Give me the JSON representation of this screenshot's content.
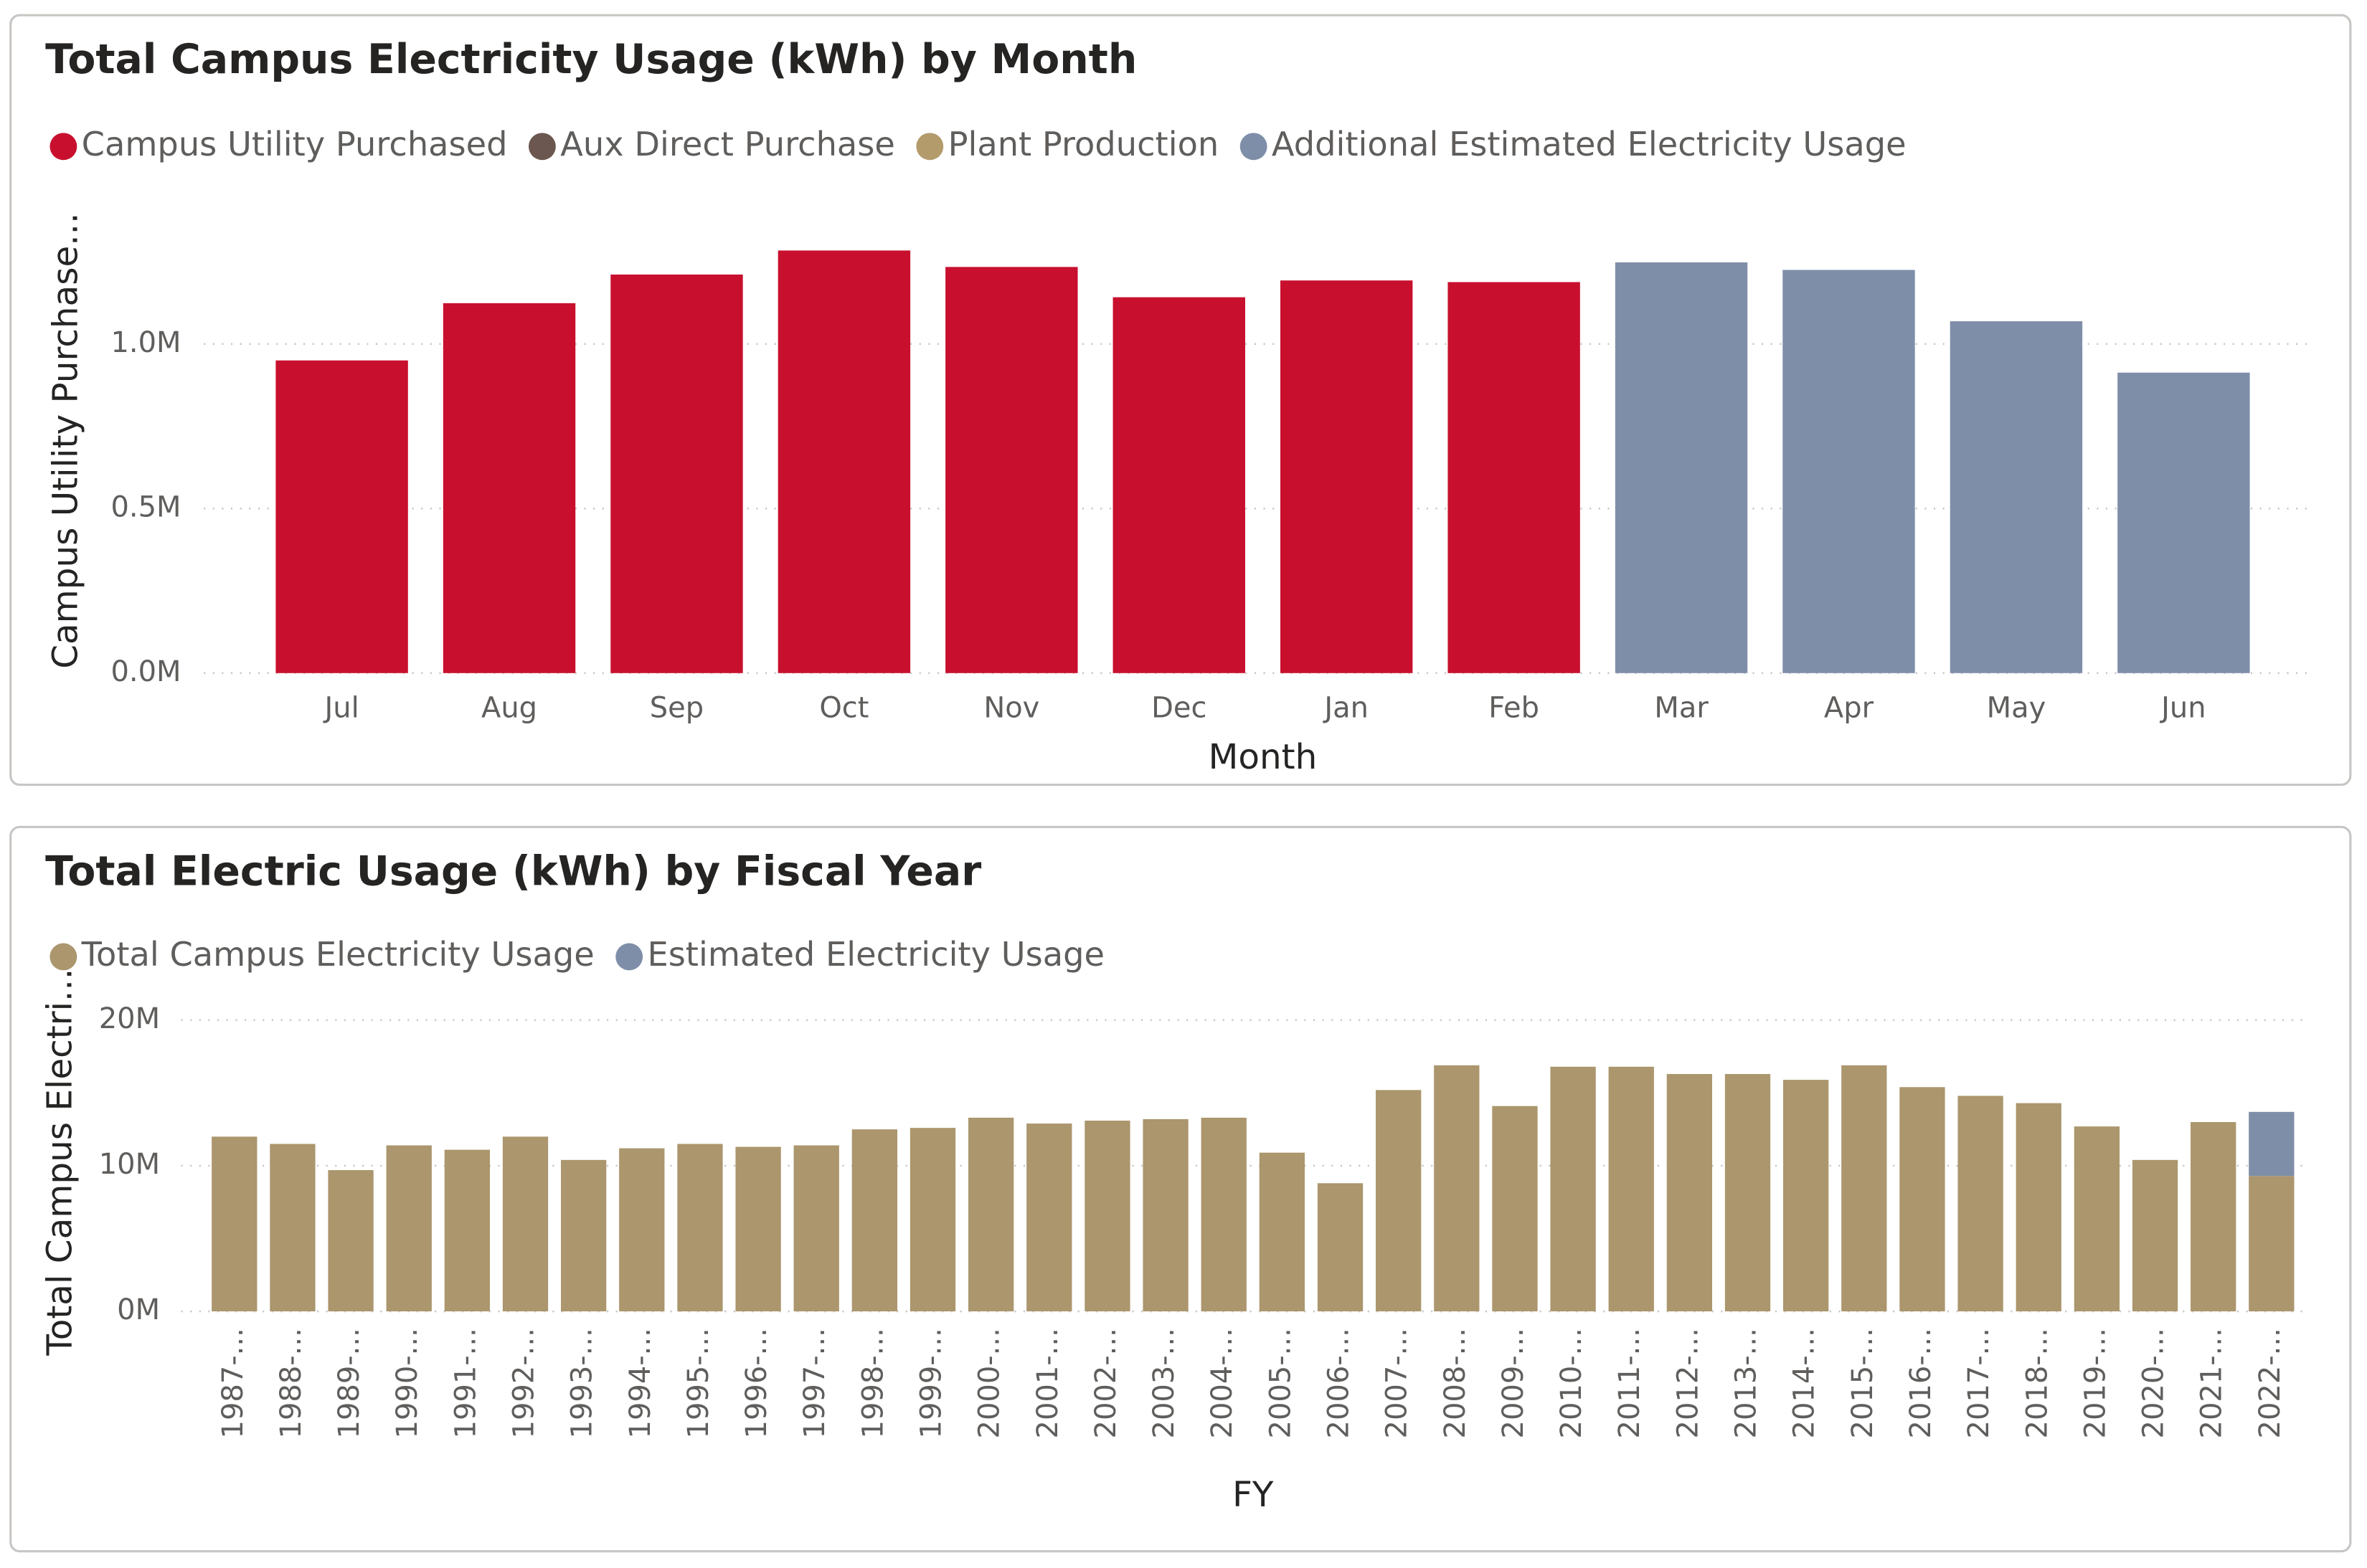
{
  "chart_data": [
    {
      "type": "bar",
      "stacked": true,
      "title": "Total Campus Electricity Usage (kWh) by Month",
      "categories": [
        "Jul",
        "Aug",
        "Sep",
        "Oct",
        "Nov",
        "Dec",
        "Jan",
        "Feb",
        "Mar",
        "Apr",
        "May",
        "Jun"
      ],
      "series": [
        {
          "name": "Campus Utility Purchased",
          "color": "#c8102e",
          "values": [
            950000,
            1124000,
            1211000,
            1284000,
            1234000,
            1142000,
            1193000,
            1188000,
            null,
            null,
            null,
            null
          ]
        },
        {
          "name": "Aux Direct Purchase",
          "color": "#6b5750",
          "values": [
            null,
            null,
            null,
            null,
            null,
            null,
            null,
            null,
            null,
            null,
            null,
            null
          ]
        },
        {
          "name": "Plant Production",
          "color": "#b39b6c",
          "values": [
            null,
            null,
            null,
            null,
            null,
            null,
            null,
            null,
            null,
            null,
            null,
            null
          ]
        },
        {
          "name": "Additional Estimated Electricity Usage",
          "color": "#7f8ea8",
          "values": [
            null,
            null,
            null,
            null,
            null,
            null,
            null,
            null,
            1248000,
            1225000,
            1069000,
            913000
          ]
        }
      ],
      "ylim": [
        0,
        1380000
      ],
      "yticks": [
        {
          "value": 0,
          "label": "0.0M"
        },
        {
          "value": 500000,
          "label": "0.5M"
        },
        {
          "value": 1000000,
          "label": "1.0M"
        }
      ],
      "x_label": "Month",
      "y_label": "Campus Utility Purchase...",
      "grid": true
    },
    {
      "type": "bar",
      "stacked": true,
      "title": "Total Electric Usage (kWh) by Fiscal Year",
      "categories": [
        "1987-...",
        "1988-...",
        "1989-...",
        "1990-...",
        "1991-...",
        "1992-...",
        "1993-...",
        "1994-...",
        "1995-...",
        "1996-...",
        "1997-...",
        "1998-...",
        "1999-...",
        "2000-...",
        "2001-...",
        "2002-...",
        "2003-...",
        "2004-...",
        "2005-...",
        "2006-...",
        "2007-...",
        "2008-...",
        "2009-...",
        "2010-...",
        "2011-...",
        "2012-...",
        "2013-...",
        "2014-...",
        "2015-...",
        "2016-...",
        "2017-...",
        "2018-...",
        "2019-...",
        "2020-...",
        "2021-...",
        "2022-..."
      ],
      "series": [
        {
          "name": "Total Campus Electricity Usage",
          "color": "#ab966d",
          "values": [
            12000000,
            11500000,
            9700000,
            11400000,
            11100000,
            12000000,
            10400000,
            11200000,
            11500000,
            11300000,
            11400000,
            12500000,
            12600000,
            13300000,
            12900000,
            13100000,
            13200000,
            13300000,
            10900000,
            8800000,
            15200000,
            16900000,
            14100000,
            16800000,
            16800000,
            16300000,
            16300000,
            15900000,
            16900000,
            15400000,
            14800000,
            14300000,
            12700000,
            10400000,
            13000000,
            9300000
          ]
        },
        {
          "name": "Estimated Electricity Usage",
          "color": "#7f8ea8",
          "values": [
            null,
            null,
            null,
            null,
            null,
            null,
            null,
            null,
            null,
            null,
            null,
            null,
            null,
            null,
            null,
            null,
            null,
            null,
            null,
            null,
            null,
            null,
            null,
            null,
            null,
            null,
            null,
            null,
            null,
            null,
            null,
            null,
            null,
            null,
            null,
            4400000
          ]
        }
      ],
      "ylim": [
        0,
        20000000
      ],
      "yticks": [
        {
          "value": 0,
          "label": "0M"
        },
        {
          "value": 10000000,
          "label": "10M"
        },
        {
          "value": 20000000,
          "label": "20M"
        }
      ],
      "x_label": "FY",
      "y_label": "Total Campus Electri...",
      "grid": true
    }
  ]
}
